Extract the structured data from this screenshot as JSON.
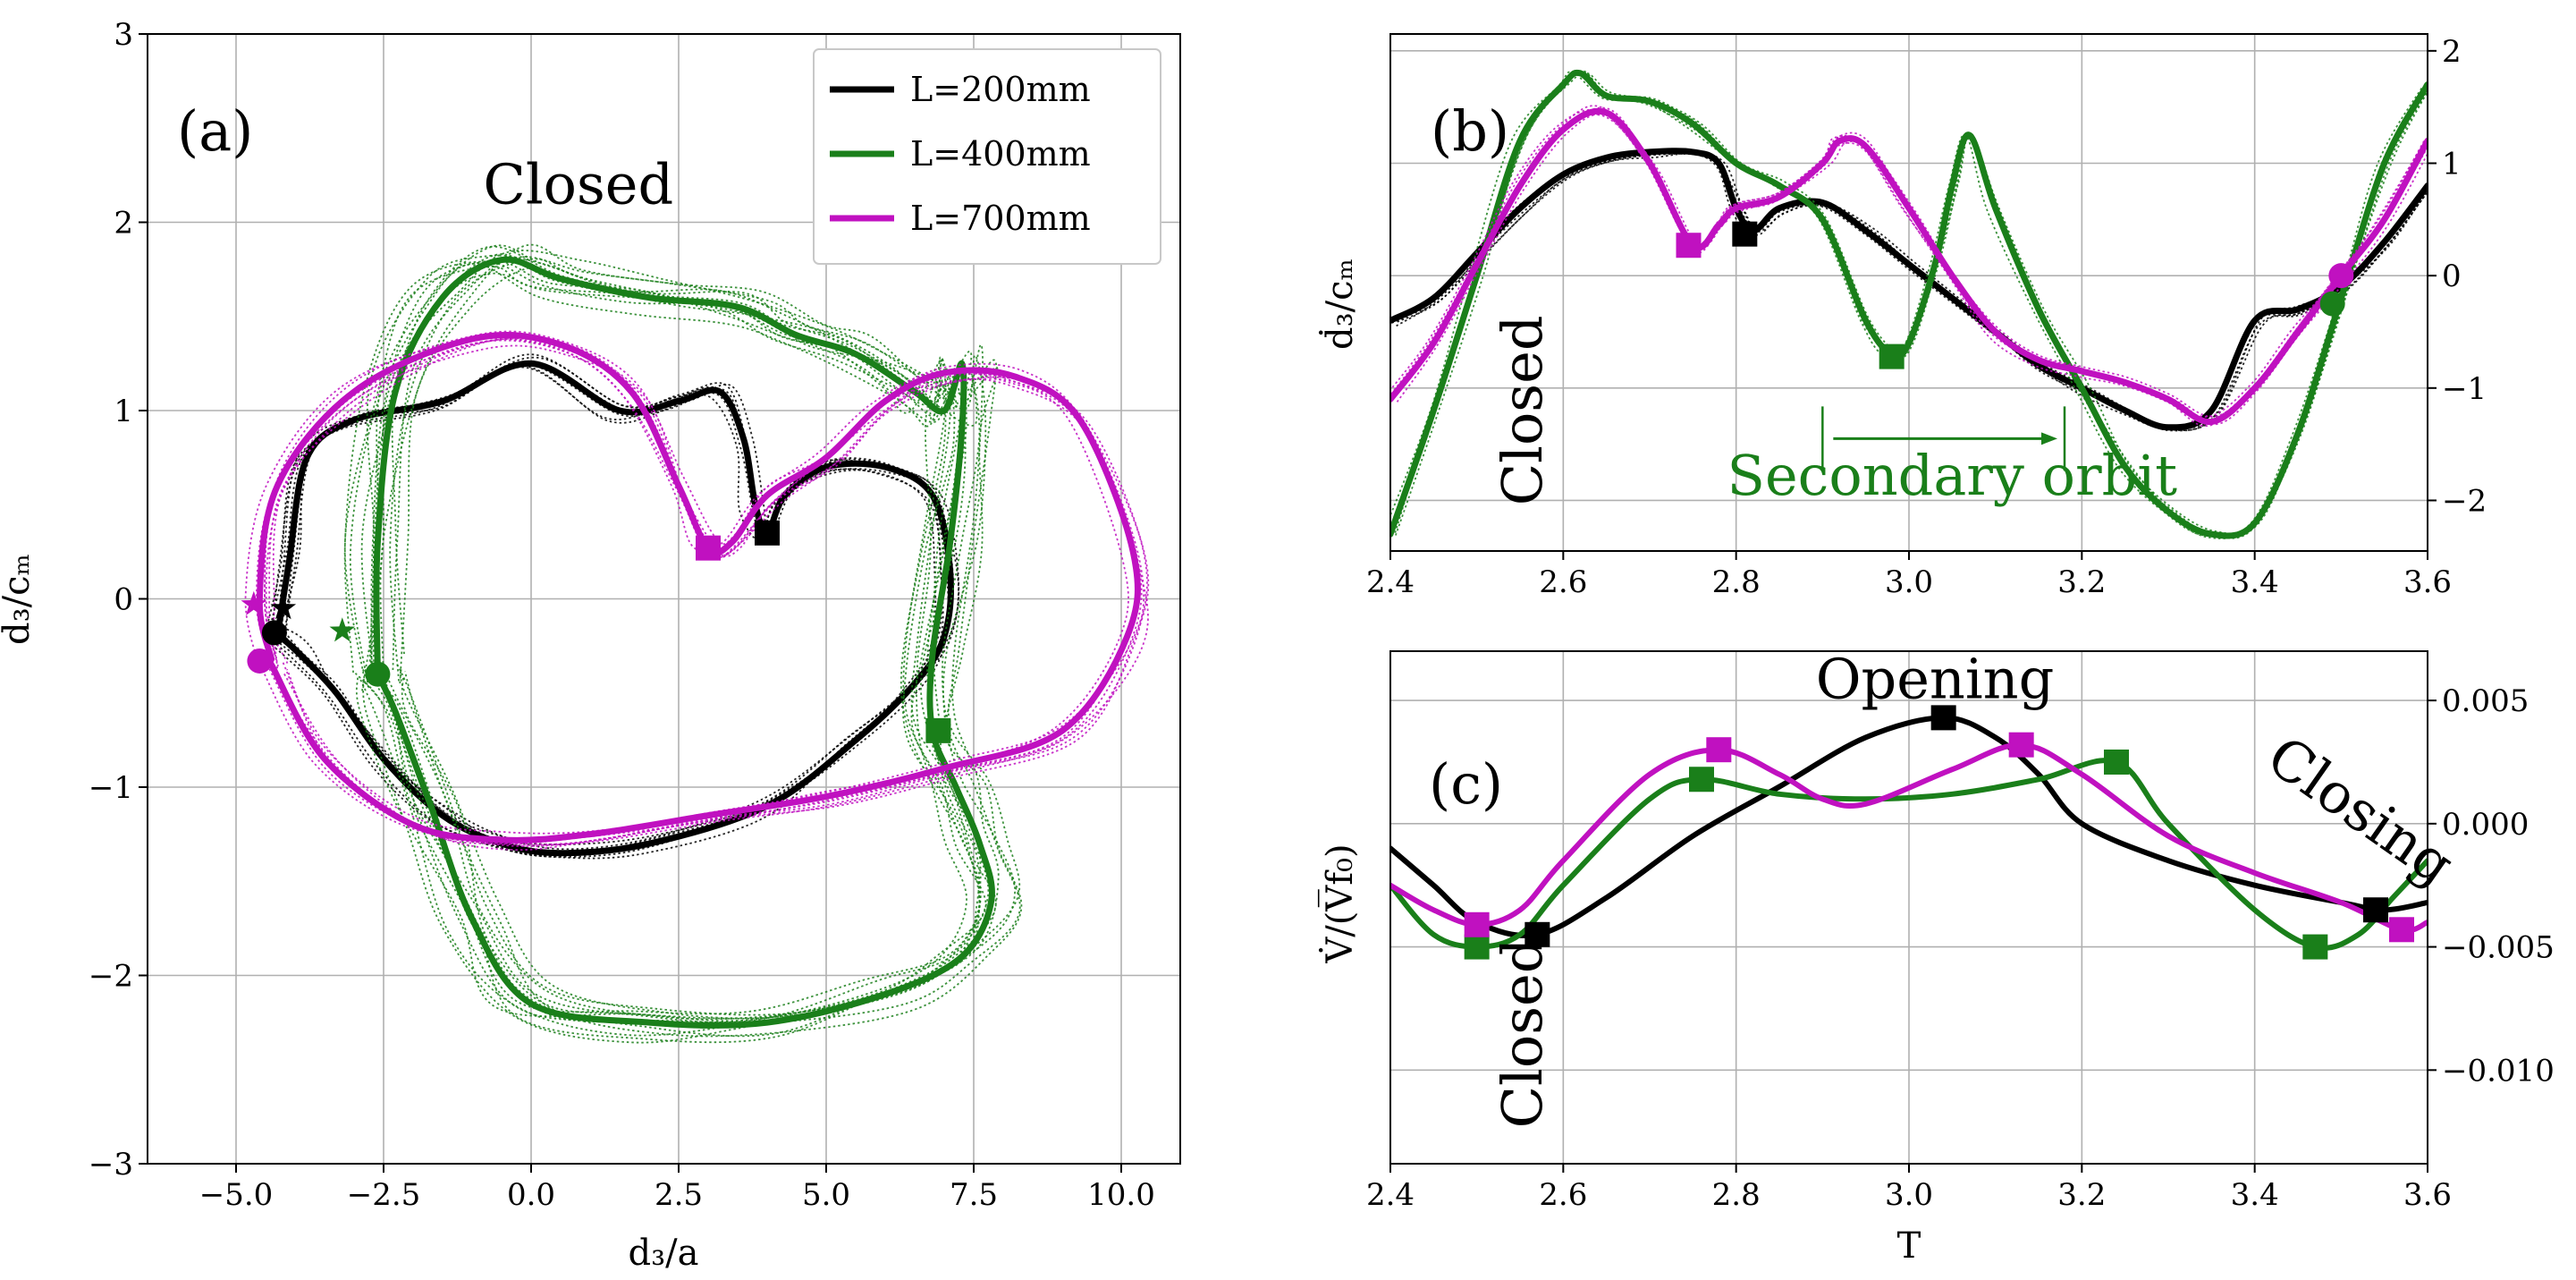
{
  "colors": {
    "black": "#000000",
    "green": "#1a7f1a",
    "magenta": "#c011c0"
  },
  "chart_data": [
    {
      "id": "a",
      "type": "line",
      "panel_label": "(a)",
      "xlabel": "d₃/a",
      "ylabel": "ḋ₃/cₘ",
      "xlim": [
        -6.5,
        11.0
      ],
      "ylim": [
        -3,
        3
      ],
      "xticks": [
        "−5.0",
        "−2.5",
        "0.0",
        "2.5",
        "5.0",
        "7.5",
        "10.0"
      ],
      "yticks": [
        "−3",
        "−2",
        "−1",
        "0",
        "1",
        "2",
        "3"
      ],
      "legend": {
        "position": "top-right",
        "entries": [
          "L=200mm",
          "L=400mm",
          "L=700mm"
        ]
      },
      "annotations": [
        {
          "text": "Closed",
          "x": 0.8,
          "y": 2.1
        }
      ],
      "series": [
        {
          "name": "L=200mm",
          "color": "black",
          "x": [
            -4.3,
            -4.1,
            -3.8,
            -3.0,
            -1.5,
            0.0,
            1.5,
            2.5,
            3.2,
            3.6,
            3.8,
            4.0,
            4.3,
            5.0,
            6.0,
            6.8,
            7.1,
            7.0,
            6.5,
            5.5,
            4.0,
            2.0,
            0.5,
            -0.5,
            -1.5,
            -2.5,
            -3.3,
            -3.9,
            -4.25,
            -4.35
          ],
          "y": [
            -0.2,
            0.2,
            0.75,
            0.95,
            1.05,
            1.25,
            1.0,
            1.05,
            1.1,
            0.85,
            0.5,
            0.35,
            0.55,
            0.7,
            0.7,
            0.55,
            0.15,
            -0.2,
            -0.45,
            -0.75,
            -1.1,
            -1.3,
            -1.35,
            -1.3,
            -1.15,
            -0.85,
            -0.5,
            -0.3,
            -0.2,
            -0.18
          ]
        },
        {
          "name": "L=400mm",
          "color": "green",
          "x": [
            -2.6,
            -2.6,
            -2.3,
            -1.5,
            -0.5,
            0.5,
            2.0,
            3.5,
            4.5,
            5.5,
            6.5,
            7.0,
            7.3,
            7.3,
            7.1,
            6.8,
            6.8,
            7.2,
            7.6,
            7.8,
            7.3,
            6.0,
            4.0,
            2.0,
            0.0,
            -1.0,
            -1.7,
            -2.3,
            -2.6
          ],
          "y": [
            -0.4,
            0.3,
            1.1,
            1.6,
            1.8,
            1.7,
            1.6,
            1.55,
            1.4,
            1.3,
            1.1,
            1.0,
            1.25,
            0.9,
            0.3,
            -0.3,
            -0.7,
            -1.0,
            -1.3,
            -1.6,
            -1.9,
            -2.1,
            -2.25,
            -2.25,
            -2.15,
            -1.7,
            -1.1,
            -0.6,
            -0.4
          ]
        },
        {
          "name": "L=700mm",
          "color": "magenta",
          "x": [
            -4.4,
            -4.6,
            -4.3,
            -3.0,
            -1.0,
            0.5,
            1.7,
            2.5,
            3.0,
            3.4,
            4.0,
            5.0,
            6.0,
            7.0,
            8.2,
            9.3,
            10.2,
            10.1,
            9.0,
            7.0,
            5.0,
            3.0,
            1.0,
            -0.5,
            -2.0,
            -3.5,
            -4.4
          ],
          "y": [
            -0.32,
            0.0,
            0.6,
            1.1,
            1.38,
            1.35,
            1.1,
            0.6,
            0.27,
            0.3,
            0.55,
            0.75,
            1.05,
            1.2,
            1.18,
            0.95,
            0.25,
            -0.2,
            -0.7,
            -0.9,
            -1.05,
            -1.15,
            -1.25,
            -1.28,
            -1.2,
            -0.85,
            -0.35
          ]
        }
      ],
      "markers": [
        {
          "series": "L=200mm",
          "shape": "square",
          "x": 4.0,
          "y": 0.35
        },
        {
          "series": "L=200mm",
          "shape": "circle",
          "x": -4.35,
          "y": -0.18
        },
        {
          "series": "L=200mm",
          "shape": "star",
          "x": -4.2,
          "y": -0.05
        },
        {
          "series": "L=400mm",
          "shape": "square",
          "x": 6.9,
          "y": -0.7
        },
        {
          "series": "L=400mm",
          "shape": "circle",
          "x": -2.6,
          "y": -0.4
        },
        {
          "series": "L=400mm",
          "shape": "star",
          "x": -3.2,
          "y": -0.17
        },
        {
          "series": "L=700mm",
          "shape": "square",
          "x": 3.0,
          "y": 0.27
        },
        {
          "series": "L=700mm",
          "shape": "circle",
          "x": -4.6,
          "y": -0.33
        },
        {
          "series": "L=700mm",
          "shape": "star",
          "x": -4.7,
          "y": -0.03
        }
      ]
    },
    {
      "id": "b",
      "type": "line",
      "panel_label": "(b)",
      "xlabel": "",
      "ylabel": "ḋ₃/cₘ",
      "xlim": [
        2.4,
        3.6
      ],
      "ylim": [
        -2.45,
        2.15
      ],
      "xticks": [
        "2.4",
        "2.6",
        "2.8",
        "3.0",
        "3.2",
        "3.4",
        "3.6"
      ],
      "yticks": [
        "−2",
        "−1",
        "0",
        "1",
        "2"
      ],
      "annotations": [
        {
          "text": "Closed",
          "x": 2.575,
          "y": -1.2
        },
        {
          "text": "Secondary orbit",
          "x": 3.05,
          "y": -1.95
        }
      ],
      "series": [
        {
          "name": "L=200mm",
          "color": "black",
          "x": [
            2.4,
            2.45,
            2.5,
            2.55,
            2.6,
            2.65,
            2.7,
            2.75,
            2.78,
            2.8,
            2.82,
            2.85,
            2.9,
            2.95,
            3.0,
            3.05,
            3.1,
            3.15,
            3.2,
            3.25,
            3.3,
            3.35,
            3.4,
            3.45,
            3.5,
            3.55,
            3.6
          ],
          "y": [
            -0.4,
            -0.2,
            0.2,
            0.6,
            0.9,
            1.05,
            1.1,
            1.1,
            1.0,
            0.6,
            0.4,
            0.6,
            0.65,
            0.4,
            0.1,
            -0.2,
            -0.5,
            -0.8,
            -1.0,
            -1.2,
            -1.35,
            -1.2,
            -0.4,
            -0.3,
            -0.1,
            0.3,
            0.8
          ]
        },
        {
          "name": "L=400mm",
          "color": "green",
          "x": [
            2.4,
            2.45,
            2.5,
            2.55,
            2.6,
            2.62,
            2.65,
            2.7,
            2.75,
            2.8,
            2.85,
            2.9,
            2.95,
            2.98,
            3.0,
            3.03,
            3.05,
            3.07,
            3.1,
            3.15,
            3.2,
            3.25,
            3.3,
            3.35,
            3.4,
            3.45,
            3.5,
            3.55,
            3.6
          ],
          "y": [
            -2.3,
            -1.2,
            0.0,
            1.2,
            1.7,
            1.8,
            1.6,
            1.55,
            1.35,
            1.0,
            0.8,
            0.5,
            -0.4,
            -0.7,
            -0.6,
            0.1,
            0.8,
            1.25,
            0.6,
            -0.3,
            -1.0,
            -1.7,
            -2.1,
            -2.3,
            -2.2,
            -1.4,
            -0.2,
            1.0,
            1.7
          ]
        },
        {
          "name": "L=700mm",
          "color": "magenta",
          "x": [
            2.4,
            2.45,
            2.5,
            2.55,
            2.6,
            2.65,
            2.7,
            2.75,
            2.78,
            2.8,
            2.85,
            2.9,
            2.92,
            2.95,
            3.0,
            3.05,
            3.1,
            3.15,
            3.2,
            3.25,
            3.3,
            3.35,
            3.4,
            3.45,
            3.5,
            3.55,
            3.6
          ],
          "y": [
            -1.1,
            -0.6,
            0.1,
            0.8,
            1.3,
            1.45,
            1.0,
            0.27,
            0.45,
            0.6,
            0.7,
            1.0,
            1.2,
            1.15,
            0.6,
            0.0,
            -0.5,
            -0.75,
            -0.85,
            -0.95,
            -1.1,
            -1.3,
            -1.0,
            -0.5,
            0.0,
            0.5,
            1.2
          ]
        }
      ],
      "markers": [
        {
          "series": "L=200mm",
          "shape": "square",
          "x": 2.81,
          "y": 0.37
        },
        {
          "series": "L=400mm",
          "shape": "square",
          "x": 2.98,
          "y": -0.72
        },
        {
          "series": "L=400mm",
          "shape": "circle",
          "x": 3.49,
          "y": -0.25
        },
        {
          "series": "L=700mm",
          "shape": "square",
          "x": 2.745,
          "y": 0.27
        },
        {
          "series": "L=700mm",
          "shape": "circle",
          "x": 3.5,
          "y": 0.0
        }
      ],
      "bracket": {
        "x1": 2.9,
        "x2": 3.18,
        "y": -1.45
      }
    },
    {
      "id": "c",
      "type": "line",
      "panel_label": "(c)",
      "xlabel": "T",
      "ylabel": "V̇/(V̅f₀)",
      "xlim": [
        2.4,
        3.6
      ],
      "ylim": [
        -0.0138,
        0.007
      ],
      "xticks": [
        "2.4",
        "2.6",
        "2.8",
        "3.0",
        "3.2",
        "3.4",
        "3.6"
      ],
      "yticks": [
        "−0.010",
        "−0.005",
        "0.000",
        "0.005"
      ],
      "annotations": [
        {
          "text": "Opening",
          "x": 3.03,
          "y": 0.0051
        },
        {
          "text": "Closing",
          "x": 3.51,
          "y": -0.0001
        },
        {
          "text": "Closed",
          "x": 2.575,
          "y": -0.0085
        }
      ],
      "series": [
        {
          "name": "L=200mm",
          "color": "black",
          "x": [
            2.4,
            2.45,
            2.5,
            2.57,
            2.65,
            2.75,
            2.85,
            2.95,
            3.04,
            3.1,
            3.15,
            3.2,
            3.3,
            3.4,
            3.5,
            3.55,
            3.6
          ],
          "y": [
            -0.001,
            -0.0025,
            -0.004,
            -0.0045,
            -0.003,
            -0.0005,
            0.0015,
            0.0035,
            0.0043,
            0.0035,
            0.002,
            0.0,
            -0.0015,
            -0.0025,
            -0.0032,
            -0.0035,
            -0.0032
          ]
        },
        {
          "name": "L=400mm",
          "color": "green",
          "x": [
            2.4,
            2.45,
            2.5,
            2.55,
            2.6,
            2.7,
            2.76,
            2.85,
            2.95,
            3.05,
            3.15,
            3.24,
            3.3,
            3.4,
            3.47,
            3.52,
            3.56,
            3.6
          ],
          "y": [
            -0.0025,
            -0.0045,
            -0.005,
            -0.0045,
            -0.0025,
            0.001,
            0.0018,
            0.0012,
            0.001,
            0.0012,
            0.0018,
            0.0025,
            0.0,
            -0.0035,
            -0.005,
            -0.0045,
            -0.003,
            -0.0015
          ]
        },
        {
          "name": "L=700mm",
          "color": "magenta",
          "x": [
            2.4,
            2.45,
            2.5,
            2.55,
            2.6,
            2.7,
            2.78,
            2.85,
            2.9,
            2.95,
            3.05,
            3.13,
            3.2,
            3.3,
            3.4,
            3.5,
            3.57,
            3.6
          ],
          "y": [
            -0.0025,
            -0.0035,
            -0.0041,
            -0.0035,
            -0.0015,
            0.002,
            0.003,
            0.002,
            0.001,
            0.0008,
            0.0022,
            0.0032,
            0.002,
            -0.0005,
            -0.002,
            -0.0032,
            -0.0043,
            -0.004
          ]
        }
      ],
      "markers": [
        {
          "series": "L=200mm",
          "shape": "square",
          "x": 2.57,
          "y": -0.0045
        },
        {
          "series": "L=200mm",
          "shape": "square",
          "x": 3.04,
          "y": 0.0043
        },
        {
          "series": "L=200mm",
          "shape": "square",
          "x": 3.54,
          "y": -0.0035
        },
        {
          "series": "L=400mm",
          "shape": "square",
          "x": 2.5,
          "y": -0.005
        },
        {
          "series": "L=400mm",
          "shape": "square",
          "x": 2.76,
          "y": 0.0018
        },
        {
          "series": "L=400mm",
          "shape": "square",
          "x": 3.24,
          "y": 0.0025
        },
        {
          "series": "L=400mm",
          "shape": "square",
          "x": 3.47,
          "y": -0.005
        },
        {
          "series": "L=700mm",
          "shape": "square",
          "x": 2.5,
          "y": -0.0041
        },
        {
          "series": "L=700mm",
          "shape": "square",
          "x": 2.78,
          "y": 0.003
        },
        {
          "series": "L=700mm",
          "shape": "square",
          "x": 3.13,
          "y": 0.0032
        },
        {
          "series": "L=700mm",
          "shape": "square",
          "x": 3.57,
          "y": -0.0043
        }
      ]
    }
  ]
}
